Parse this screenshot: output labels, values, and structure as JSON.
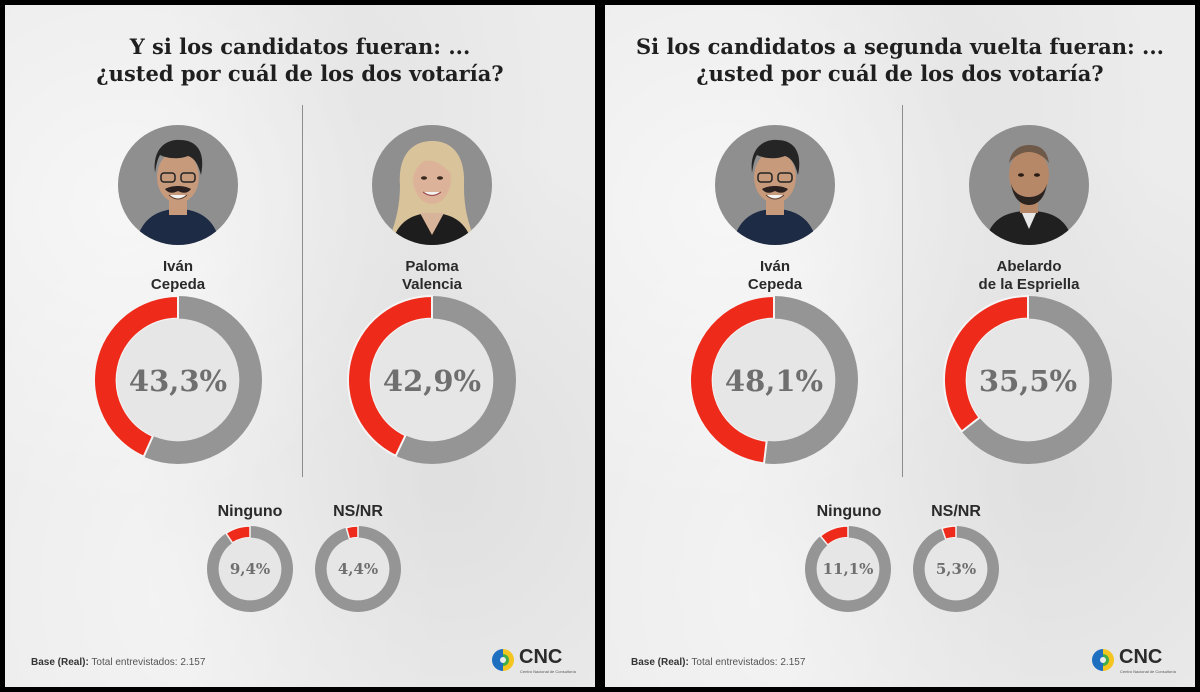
{
  "colors": {
    "red": "#ee2b1b",
    "grey": "#959595",
    "inner": "#e6e6e6",
    "skin": "#c79a7c",
    "hair": "#252525"
  },
  "chart_data": [
    {
      "type": "pie",
      "title": "Y si los candidatos fueran: ... ¿usted por cuál de los dos votaría?",
      "title_lines": [
        "Y si los candidatos fueran: ...",
        "¿usted por cuál de los dos votaría?"
      ],
      "candidates": [
        {
          "name_lines": [
            "Iván",
            "Cepeda"
          ],
          "value": 43.3,
          "label": "43,3%",
          "portrait": "man-portrait-icon"
        },
        {
          "name_lines": [
            "Paloma",
            "Valencia"
          ],
          "value": 42.9,
          "label": "42,9%",
          "portrait": "woman-portrait-icon"
        }
      ],
      "others": [
        {
          "name": "Ninguno",
          "value": 9.4,
          "label": "9,4%"
        },
        {
          "name": "NS/NR",
          "value": 4.4,
          "label": "4,4%"
        }
      ],
      "base": {
        "label": "Base (Real):",
        "text": "Total entrevistados: 2.157"
      }
    },
    {
      "type": "pie",
      "title": "Si los candidatos a segunda vuelta fueran: ... ¿usted por cuál de los dos votaría?",
      "title_lines": [
        "Si los candidatos a segunda vuelta fueran: ...",
        "¿usted por cuál de los dos votaría?"
      ],
      "candidates": [
        {
          "name_lines": [
            "Iván",
            "Cepeda"
          ],
          "value": 48.1,
          "label": "48,1%",
          "portrait": "man-portrait-icon"
        },
        {
          "name_lines": [
            "Abelardo",
            "de la Espriella"
          ],
          "value": 35.5,
          "label": "35,5%",
          "portrait": "bald-man-portrait-icon"
        }
      ],
      "others": [
        {
          "name": "Ninguno",
          "value": 11.1,
          "label": "11,1%"
        },
        {
          "name": "NS/NR",
          "value": 5.3,
          "label": "5,3%"
        }
      ],
      "base": {
        "label": "Base (Real):",
        "text": "Total entrevistados: 2.157"
      }
    }
  ],
  "logo": {
    "text": "CNC",
    "subtitle": "Centro Nacional de Consultoría"
  }
}
